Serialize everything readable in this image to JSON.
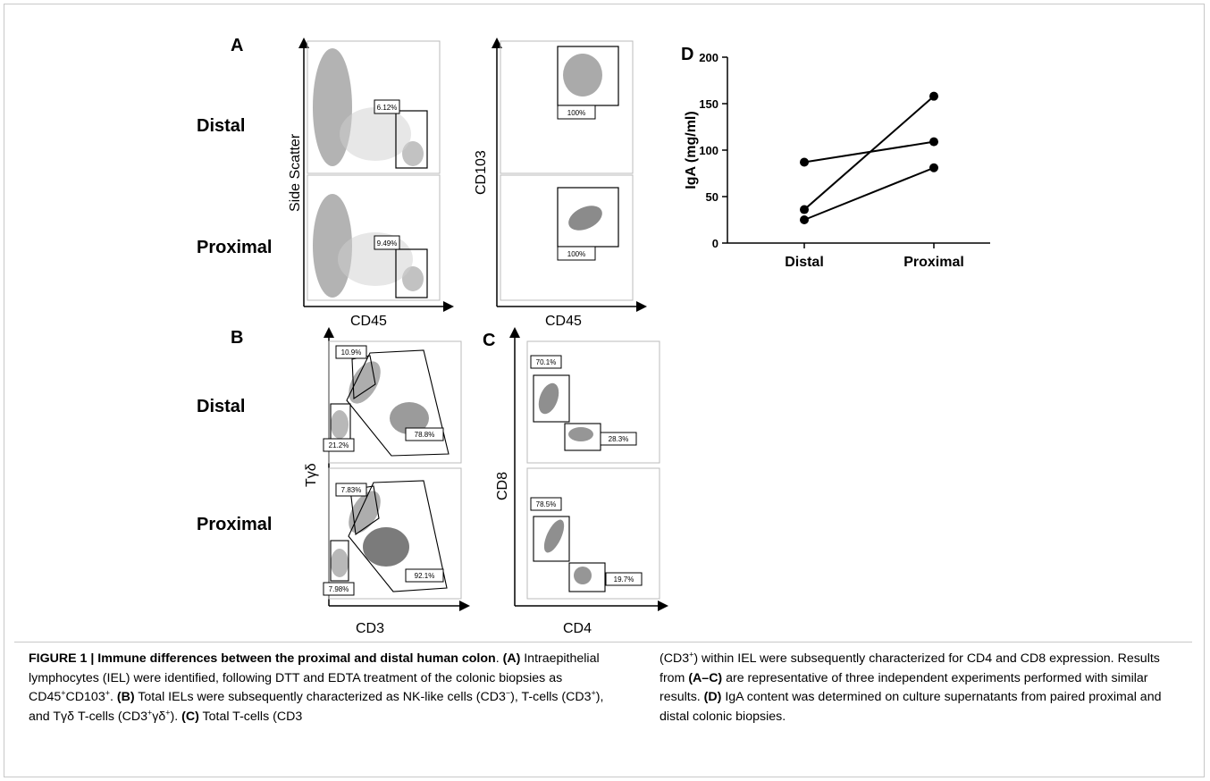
{
  "panels": {
    "A": {
      "letter": "A",
      "rows": [
        "Distal",
        "Proximal"
      ],
      "left_axes": {
        "y": "Side Scatter",
        "x": "CD45"
      },
      "right_axes": {
        "y": "CD103",
        "x": "CD45"
      },
      "gates": {
        "distal_left": "6.12%",
        "proximal_left": "9.49%",
        "distal_right": "100%",
        "proximal_right": "100%"
      }
    },
    "B": {
      "letter": "B",
      "rows": [
        "Distal",
        "Proximal"
      ],
      "axes": {
        "y": "Tγδ",
        "x": "CD3"
      },
      "gates": {
        "distal_top": "10.9%",
        "distal_low": "21.2%",
        "distal_right": "78.8%",
        "proximal_top": "7.83%",
        "proximal_low": "7.98%",
        "proximal_right": "92.1%"
      }
    },
    "C": {
      "letter": "C",
      "axes": {
        "y": "CD8",
        "x": "CD4"
      },
      "gates": {
        "distal_top": "70.1%",
        "distal_right": "28.3%",
        "proximal_top": "78.5%",
        "proximal_right": "19.7%"
      }
    },
    "D": {
      "letter": "D"
    }
  },
  "chart_data": {
    "type": "line",
    "title": "",
    "xlabel": "",
    "ylabel": "IgA (mg/ml)",
    "categories": [
      "Distal",
      "Proximal"
    ],
    "ylim": [
      0,
      200
    ],
    "yticks": [
      "0",
      "50",
      "100",
      "150",
      "200"
    ],
    "series": [
      {
        "values": [
          87,
          109
        ]
      },
      {
        "values": [
          36,
          158
        ]
      },
      {
        "values": [
          25,
          81
        ]
      }
    ]
  },
  "caption": {
    "label": "FIGURE 1 | Immune differences between the proximal and distal human colon",
    "s1": ". ",
    "a": "(A)",
    "t_a": " Intraepithelial lymphocytes (IEL) were identified, following DTT and EDTA treatment of the colonic biopsies as CD45",
    "cd103": "CD103",
    "s2": ". ",
    "b": "(B)",
    "t_b1": " Total IELs were subsequently characterized as NK-like cells (CD3",
    "minus": "−",
    "t_b2": "), T-cells (CD3",
    "t_b3": "), and Tγδ T-cells (CD3",
    "gd": "γδ",
    "t_b4": "). ",
    "c": "(C)",
    "t_c1": " Total T-cells (CD3",
    "t_c2": ") within IEL were subsequently characterized for CD4 and CD8 expression. Results from ",
    "ac": "(A–C)",
    "t_c3": " are representative of three independent experiments performed with similar results. ",
    "d": "(D)",
    "t_d": " IgA content was determined on culture supernatants from paired proximal and distal colonic biopsies.",
    "plus": "+"
  }
}
